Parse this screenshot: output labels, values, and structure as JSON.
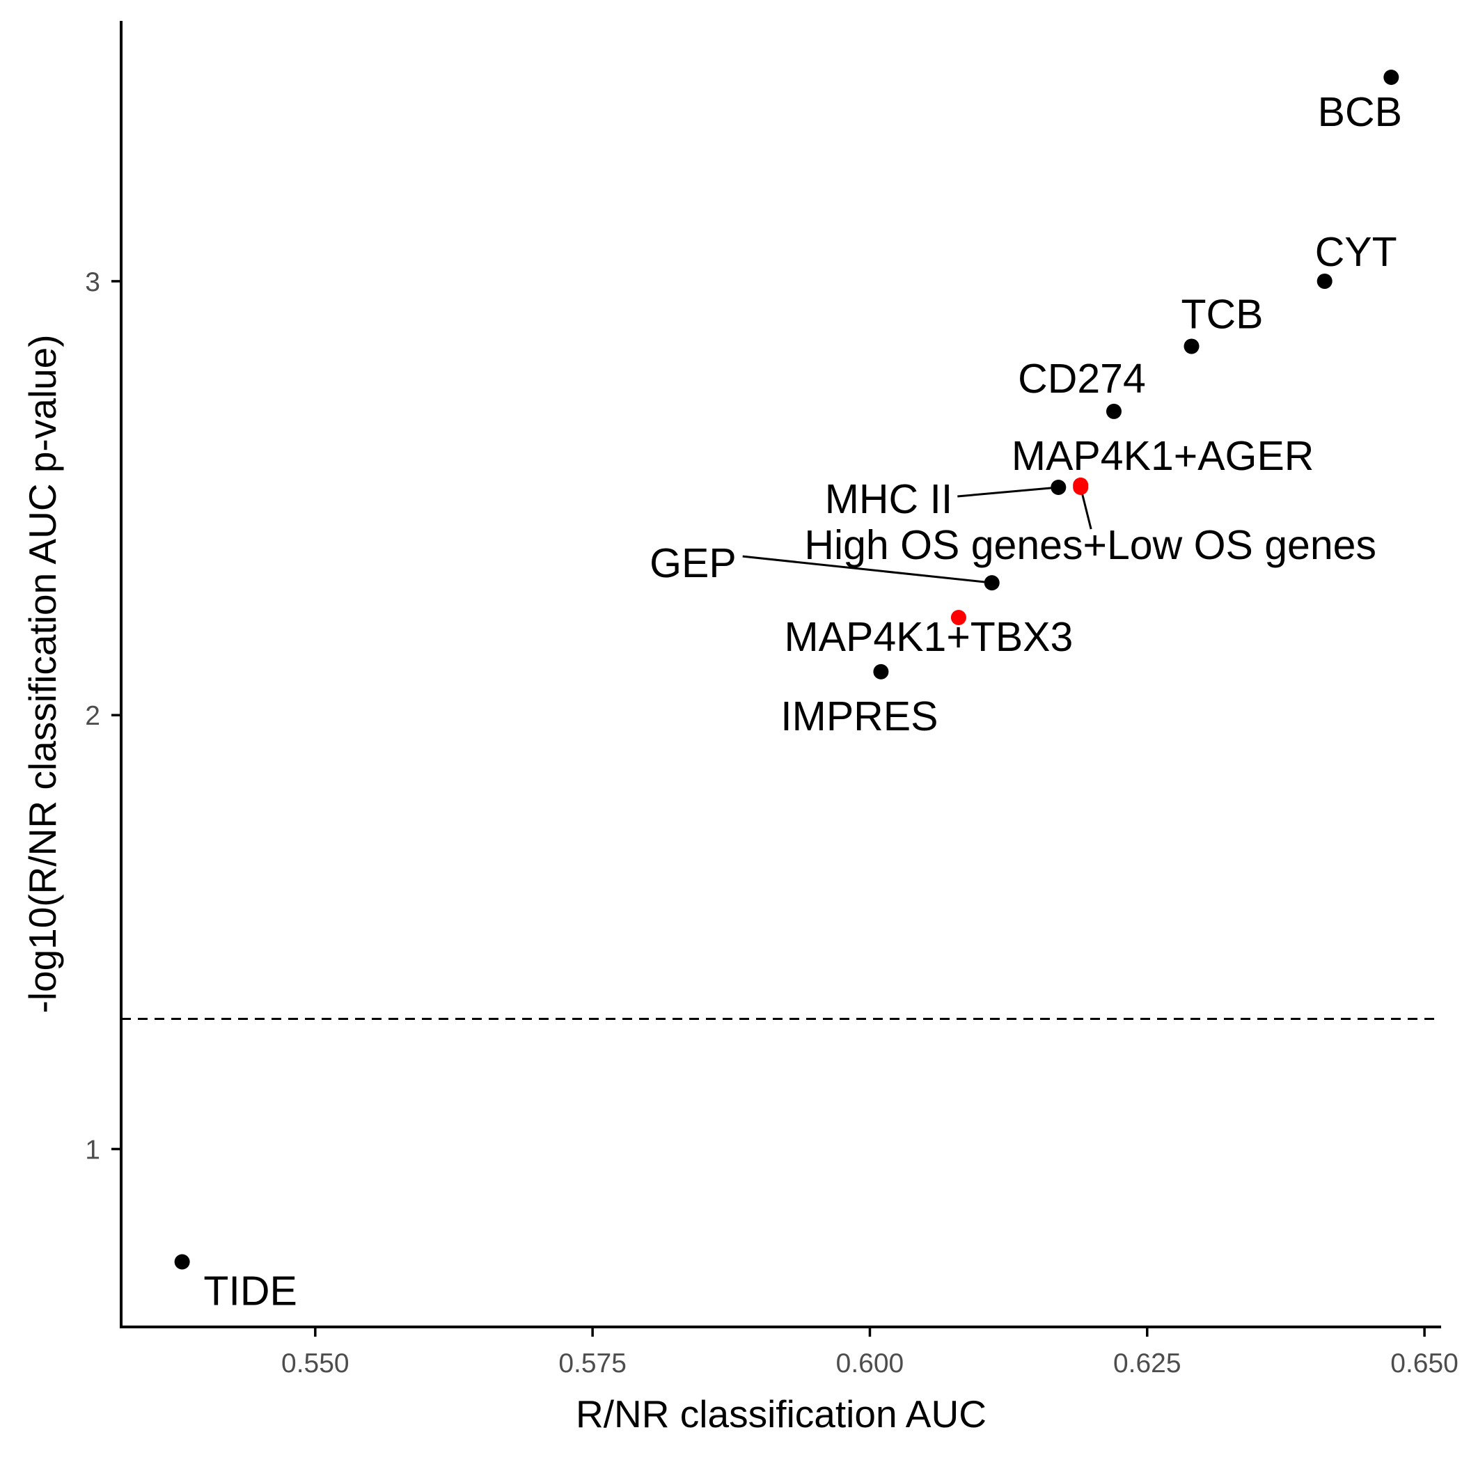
{
  "chart_data": {
    "type": "scatter",
    "title": "",
    "xlabel": "R/NR classification AUC",
    "ylabel": "-log10(R/NR classification AUC p-value)",
    "xlim": [
      0.5325,
      0.6515
    ],
    "ylim": [
      0.59,
      3.6
    ],
    "x_ticks": [
      {
        "value": 0.55,
        "label": "0.550"
      },
      {
        "value": 0.575,
        "label": "0.575"
      },
      {
        "value": 0.6,
        "label": "0.600"
      },
      {
        "value": 0.625,
        "label": "0.625"
      },
      {
        "value": 0.65,
        "label": "0.650"
      }
    ],
    "y_ticks": [
      {
        "value": 1,
        "label": "1"
      },
      {
        "value": 2,
        "label": "2"
      },
      {
        "value": 3,
        "label": "3"
      }
    ],
    "reference_line": {
      "orientation": "horizontal",
      "y": 1.3,
      "style": "dashed"
    },
    "grid": false,
    "legend": "none",
    "colors": {
      "default": "#000000",
      "highlight": "#ff0000"
    },
    "points": [
      {
        "label": "BCB",
        "x": 0.647,
        "y": 3.47,
        "color": "#000000"
      },
      {
        "label": "CYT",
        "x": 0.641,
        "y": 3.0,
        "color": "#000000"
      },
      {
        "label": "TCB",
        "x": 0.629,
        "y": 2.85,
        "color": "#000000"
      },
      {
        "label": "CD274",
        "x": 0.622,
        "y": 2.7,
        "color": "#000000"
      },
      {
        "label": "MHC II",
        "x": 0.617,
        "y": 2.525,
        "color": "#000000"
      },
      {
        "label": "MAP4K1+AGER",
        "x": 0.619,
        "y": 2.53,
        "color": "#ff0000"
      },
      {
        "label": "High OS genes+Low OS genes",
        "x": 0.619,
        "y": 2.525,
        "color": "#ff0000"
      },
      {
        "label": "GEP",
        "x": 0.611,
        "y": 2.305,
        "color": "#000000"
      },
      {
        "label": "MAP4K1+TBX3",
        "x": 0.608,
        "y": 2.225,
        "color": "#ff0000"
      },
      {
        "label": "IMPRES",
        "x": 0.601,
        "y": 2.1,
        "color": "#000000"
      },
      {
        "label": "TIDE",
        "x": 0.538,
        "y": 0.74,
        "color": "#000000"
      }
    ]
  }
}
